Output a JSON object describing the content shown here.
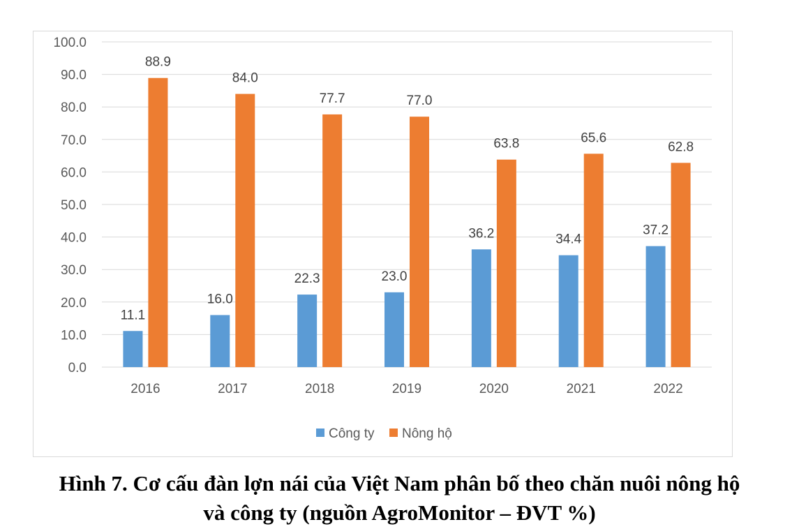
{
  "chart_data": {
    "type": "bar",
    "categories": [
      "2016",
      "2017",
      "2018",
      "2019",
      "2020",
      "2021",
      "2022"
    ],
    "series": [
      {
        "name": "Công ty",
        "color": "#5b9bd5",
        "values": [
          11.1,
          16.0,
          22.3,
          23.0,
          36.2,
          34.4,
          37.2
        ]
      },
      {
        "name": "Nông hộ",
        "color": "#ed7d31",
        "values": [
          88.9,
          84.0,
          77.7,
          77.0,
          63.8,
          65.6,
          62.8
        ]
      }
    ],
    "ylim": [
      0,
      100
    ],
    "yticks": [
      "0.0",
      "10.0",
      "20.0",
      "30.0",
      "40.0",
      "50.0",
      "60.0",
      "70.0",
      "80.0",
      "90.0",
      "100.0"
    ],
    "grid": true,
    "legend_position": "bottom",
    "gridline_color": "#d9d9d9"
  },
  "caption": {
    "line1": "Hình 7. Cơ cấu đàn lợn nái của Việt Nam phân bố theo chăn nuôi nông hộ",
    "line2": "và công ty (nguồn AgroMonitor – ĐVT %)"
  }
}
